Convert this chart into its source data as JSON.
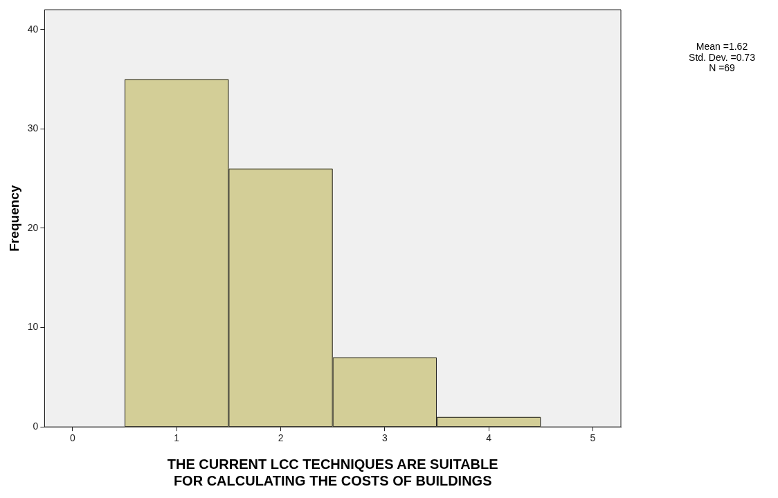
{
  "chart_data": {
    "type": "histogram",
    "xlabel": "THE CURRENT LCC TECHNIQUES ARE SUITABLE FOR CALCULATING THE COSTS OF BUILDINGS",
    "ylabel": "Frequency",
    "bins": [
      0.5,
      1.5,
      2.5,
      3.5,
      4.5
    ],
    "values": [
      35,
      26,
      7,
      1
    ],
    "color": "#d3ce97",
    "xlim": [
      -0.27,
      5.27
    ],
    "xticks": [
      0,
      1,
      2,
      3,
      4,
      5
    ],
    "ylim": [
      0,
      42
    ],
    "yticks": [
      0,
      10,
      20,
      30,
      40
    ],
    "grid": false,
    "legend": false,
    "annotations": [
      "Mean =1.62",
      "Std. Dev. =0.73",
      "N =69"
    ]
  }
}
